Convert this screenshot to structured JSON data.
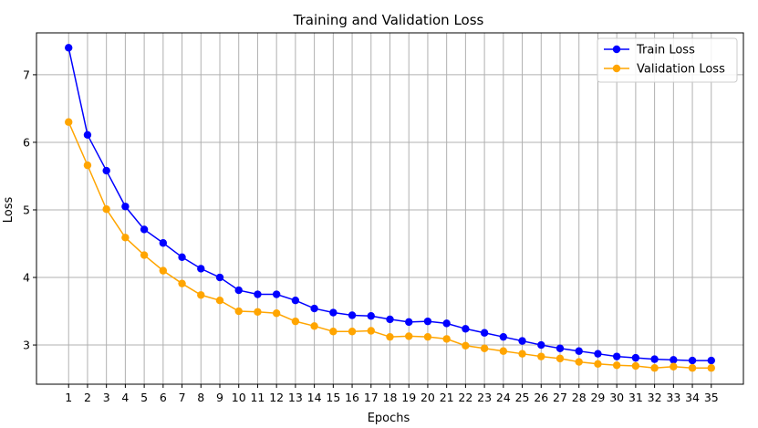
{
  "chart_data": {
    "type": "line",
    "title": "Training and Validation Loss",
    "xlabel": "Epochs",
    "ylabel": "Loss",
    "x": [
      1,
      2,
      3,
      4,
      5,
      6,
      7,
      8,
      9,
      10,
      11,
      12,
      13,
      14,
      15,
      16,
      17,
      18,
      19,
      20,
      21,
      22,
      23,
      24,
      25,
      26,
      27,
      28,
      29,
      30,
      31,
      32,
      33,
      34,
      35
    ],
    "xlim": [
      -0.7,
      36.7
    ],
    "ylim": [
      2.42,
      7.62
    ],
    "yticks": [
      3,
      4,
      5,
      6,
      7
    ],
    "grid": true,
    "legend_position": "top-right",
    "series": [
      {
        "name": "Train Loss",
        "color": "#0000ff",
        "marker": "circle",
        "values": [
          7.4,
          6.11,
          5.58,
          5.05,
          4.71,
          4.51,
          4.3,
          4.13,
          4.0,
          3.81,
          3.75,
          3.75,
          3.66,
          3.54,
          3.48,
          3.44,
          3.43,
          3.38,
          3.34,
          3.35,
          3.32,
          3.24,
          3.18,
          3.12,
          3.06,
          3.0,
          2.95,
          2.91,
          2.87,
          2.83,
          2.81,
          2.79,
          2.78,
          2.77,
          2.77
        ]
      },
      {
        "name": "Validation Loss",
        "color": "#ffa500",
        "marker": "circle",
        "values": [
          6.3,
          5.66,
          5.01,
          4.59,
          4.33,
          4.1,
          3.91,
          3.74,
          3.66,
          3.5,
          3.49,
          3.47,
          3.35,
          3.28,
          3.2,
          3.2,
          3.21,
          3.12,
          3.13,
          3.12,
          3.09,
          2.99,
          2.95,
          2.91,
          2.87,
          2.83,
          2.8,
          2.75,
          2.72,
          2.7,
          2.69,
          2.66,
          2.68,
          2.66,
          2.66
        ]
      }
    ]
  }
}
